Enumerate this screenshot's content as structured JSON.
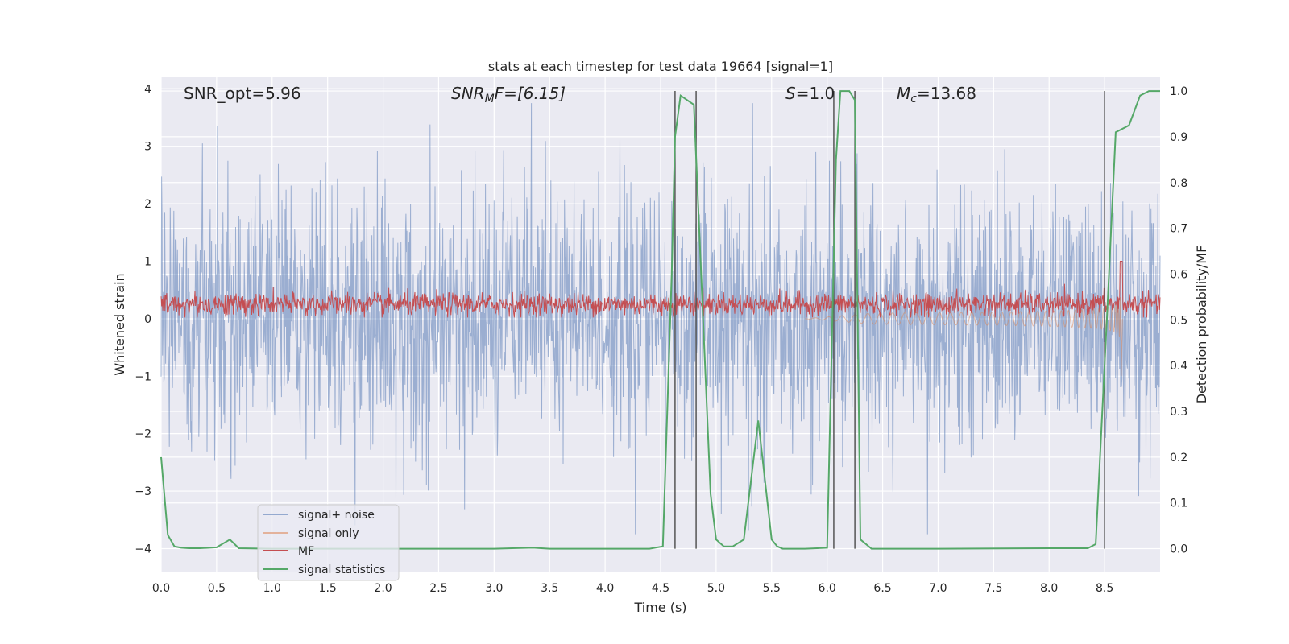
{
  "chart_data": {
    "type": "line",
    "title": "stats at each timestep for test data 19664 [signal=1]",
    "xlabel": "Time (s)",
    "ylabel": "Whitened strain",
    "ylabel_right": "Detection probability/MF",
    "xlim": [
      0.0,
      9.0
    ],
    "ylim": [
      -4.4,
      4.2
    ],
    "ylim_right": [
      -0.05,
      1.03
    ],
    "x_ticks": [
      "0.0",
      "0.5",
      "1.0",
      "1.5",
      "2.0",
      "2.5",
      "3.0",
      "3.5",
      "4.0",
      "4.5",
      "5.0",
      "5.5",
      "6.0",
      "6.5",
      "7.0",
      "7.5",
      "8.0",
      "8.5"
    ],
    "x_tick_values": [
      0.0,
      0.5,
      1.0,
      1.5,
      2.0,
      2.5,
      3.0,
      3.5,
      4.0,
      4.5,
      5.0,
      5.5,
      6.0,
      6.5,
      7.0,
      7.5,
      8.0,
      8.5
    ],
    "y_ticks": [
      "4",
      "3",
      "2",
      "1",
      "0",
      "−1",
      "−2",
      "−3",
      "−4"
    ],
    "y_tick_values": [
      4,
      3,
      2,
      1,
      0,
      -1,
      -2,
      -3,
      -4
    ],
    "y_right_ticks": [
      "1.0",
      "0.9",
      "0.8",
      "0.7",
      "0.6",
      "0.5",
      "0.4",
      "0.3",
      "0.2",
      "0.1",
      "0.0"
    ],
    "y_right_tick_values": [
      1.0,
      0.9,
      0.8,
      0.7,
      0.6,
      0.5,
      0.4,
      0.3,
      0.2,
      0.1,
      0.0
    ],
    "annotations": {
      "snr_opt": "SNR_opt=5.96",
      "snr_mf_main": "SNR",
      "snr_mf_sub": "M",
      "snr_mf_rest": "F=[6.15]",
      "s_main": "S",
      "s_rest": "=1.0",
      "mc_main": "M",
      "mc_sub": "c",
      "mc_rest": "=13.68"
    },
    "detection_lines_x": [
      4.63,
      4.82,
      6.06,
      6.25,
      8.5
    ],
    "series": [
      {
        "name": "signal+ noise",
        "color": "#4c72b0",
        "description": "whitened noisy strain, amplitude mostly within ±2.3 with spikes to about ±3.7"
      },
      {
        "name": "signal only",
        "color": "#dd8452",
        "description": "chirp signal growing toward merger near 8.65 s, reaching about +0.6 / −1.0"
      },
      {
        "name": "MF",
        "color": "#c44e52",
        "description": "matched-filter output around 0.25 ± 0.2, peak about 1.0 at 8.65 s"
      },
      {
        "name": "signal statistics",
        "color": "#55a868",
        "x": [
          0.0,
          0.06,
          0.12,
          0.18,
          0.25,
          0.35,
          0.5,
          0.62,
          0.7,
          1.0,
          2.0,
          3.0,
          3.35,
          3.5,
          4.0,
          4.4,
          4.52,
          4.6,
          4.63,
          4.68,
          4.8,
          4.95,
          5.0,
          5.07,
          5.15,
          5.25,
          5.38,
          5.5,
          5.55,
          5.6,
          5.8,
          6.0,
          6.08,
          6.12,
          6.2,
          6.25,
          6.3,
          6.4,
          7.0,
          8.0,
          8.35,
          8.42,
          8.52,
          8.6,
          8.72,
          8.82,
          8.9,
          9.0
        ],
        "y_right": [
          0.2,
          0.03,
          0.005,
          0.002,
          0.001,
          0.001,
          0.003,
          0.02,
          0.001,
          0.0,
          0.0,
          0.0,
          0.002,
          0.0,
          0.0,
          0.0,
          0.005,
          0.6,
          0.9,
          0.99,
          0.97,
          0.12,
          0.02,
          0.005,
          0.005,
          0.02,
          0.28,
          0.02,
          0.005,
          0.0,
          0.0,
          0.002,
          0.85,
          1.0,
          1.0,
          0.98,
          0.02,
          0.0,
          0.0,
          0.001,
          0.001,
          0.01,
          0.5,
          0.91,
          0.925,
          0.99,
          1.0,
          1.0
        ]
      }
    ],
    "legend": {
      "location": "lower-left",
      "entries": [
        "signal+ noise",
        "signal only",
        "MF",
        "signal statistics"
      ]
    }
  }
}
